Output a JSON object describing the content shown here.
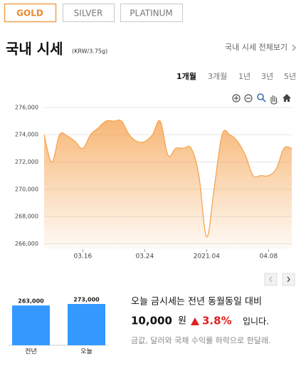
{
  "tabs": {
    "items": [
      "GOLD",
      "SILVER",
      "PLATINUM"
    ],
    "active": 0
  },
  "header": {
    "title": "국내 시세",
    "unit": "(KRW/3.75g)",
    "link": "국내 시세 전체보기"
  },
  "periods": {
    "items": [
      "1개월",
      "3개월",
      "1년",
      "3년",
      "5년"
    ],
    "active": 0
  },
  "chart_data": [
    {
      "type": "area",
      "color": "#f5a04a",
      "categories": [
        null,
        null,
        null,
        null,
        null,
        "03.16",
        null,
        null,
        null,
        null,
        null,
        null,
        null,
        "03.24",
        null,
        null,
        null,
        null,
        null,
        null,
        null,
        "2021.04",
        null,
        null,
        null,
        null,
        null,
        null,
        null,
        "04.08",
        null,
        null,
        null
      ],
      "values": [
        274000,
        272000,
        274000,
        273900,
        273500,
        273000,
        274000,
        274500,
        275000,
        275000,
        275000,
        274000,
        273500,
        273500,
        274000,
        275000,
        272500,
        273000,
        273000,
        273000,
        271000,
        266500,
        270200,
        274000,
        274000,
        273500,
        272500,
        271000,
        271000,
        271000,
        271500,
        273000,
        273000
      ],
      "ylim": [
        265600,
        277200
      ],
      "yticks": [
        {
          "value": 266000,
          "label": "266,000"
        },
        {
          "value": 268000,
          "label": "268,000"
        },
        {
          "value": 270000,
          "label": "270,000"
        },
        {
          "value": 272000,
          "label": "272,000"
        },
        {
          "value": 274000,
          "label": "274,000"
        },
        {
          "value": 276000,
          "label": "276,000"
        }
      ],
      "grid": true
    },
    {
      "type": "bar",
      "color": "#3399ff",
      "categories": [
        "전년",
        "오늘"
      ],
      "values": [
        263000,
        273000
      ],
      "value_labels": [
        "263,000",
        "273,000"
      ]
    }
  ],
  "summary": {
    "line1": "오늘 금시세는 전년 동월동일 대비",
    "amount": "10,000",
    "unit": "원",
    "change": "3.8%",
    "suffix": "입니다.",
    "note": "금값, 달러와 국채 수익률 하락으로 한달래."
  }
}
